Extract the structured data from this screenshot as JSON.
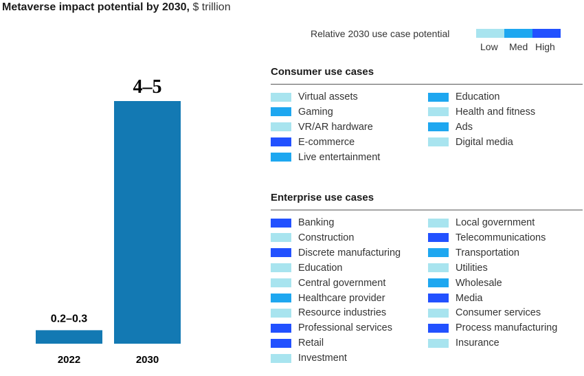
{
  "title": {
    "bold": "Metaverse impact potential by 2030,",
    "unit": "$ trillion"
  },
  "colors": {
    "bar": "#1379b3",
    "low": "#a8e4ef",
    "med": "#1ea7f0",
    "high": "#2251ff"
  },
  "chart_data": {
    "type": "bar",
    "title": "Metaverse impact potential by 2030, $ trillion",
    "categories": [
      "2022",
      "2030"
    ],
    "values": [
      0.25,
      4.5
    ],
    "data_labels": [
      "0.2–0.3",
      "4–5"
    ],
    "ranges": [
      [
        0.2,
        0.3
      ],
      [
        4,
        5
      ]
    ],
    "ylim": [
      0,
      4.5
    ],
    "grid": false
  },
  "legend": {
    "label": "Relative 2030 use case potential",
    "levels": [
      {
        "key": "low",
        "label": "Low"
      },
      {
        "key": "med",
        "label": "Med"
      },
      {
        "key": "high",
        "label": "High"
      }
    ]
  },
  "consumer": {
    "heading": "Consumer use cases",
    "col1": [
      {
        "label": "Virtual assets",
        "level": "low"
      },
      {
        "label": "Gaming",
        "level": "med"
      },
      {
        "label": "VR/AR hardware",
        "level": "low"
      },
      {
        "label": "E-commerce",
        "level": "high"
      },
      {
        "label": "Live entertainment",
        "level": "med"
      }
    ],
    "col2": [
      {
        "label": "Education",
        "level": "med"
      },
      {
        "label": "Health and fitness",
        "level": "low"
      },
      {
        "label": "Ads",
        "level": "med"
      },
      {
        "label": "Digital media",
        "level": "low"
      }
    ]
  },
  "enterprise": {
    "heading": "Enterprise use cases",
    "col1": [
      {
        "label": "Banking",
        "level": "high"
      },
      {
        "label": "Construction",
        "level": "low"
      },
      {
        "label": "Discrete manufacturing",
        "level": "high"
      },
      {
        "label": "Education",
        "level": "low"
      },
      {
        "label": "Central government",
        "level": "low"
      },
      {
        "label": "Healthcare provider",
        "level": "med"
      },
      {
        "label": "Resource industries",
        "level": "low"
      },
      {
        "label": "Professional services",
        "level": "high"
      },
      {
        "label": "Retail",
        "level": "high"
      },
      {
        "label": "Investment",
        "level": "low"
      }
    ],
    "col2": [
      {
        "label": "Local government",
        "level": "low"
      },
      {
        "label": "Telecommunications",
        "level": "high"
      },
      {
        "label": "Transportation",
        "level": "med"
      },
      {
        "label": "Utilities",
        "level": "low"
      },
      {
        "label": "Wholesale",
        "level": "med"
      },
      {
        "label": "Media",
        "level": "high"
      },
      {
        "label": "Consumer services",
        "level": "low"
      },
      {
        "label": "Process manufacturing",
        "level": "high"
      },
      {
        "label": "Insurance",
        "level": "low"
      }
    ]
  }
}
